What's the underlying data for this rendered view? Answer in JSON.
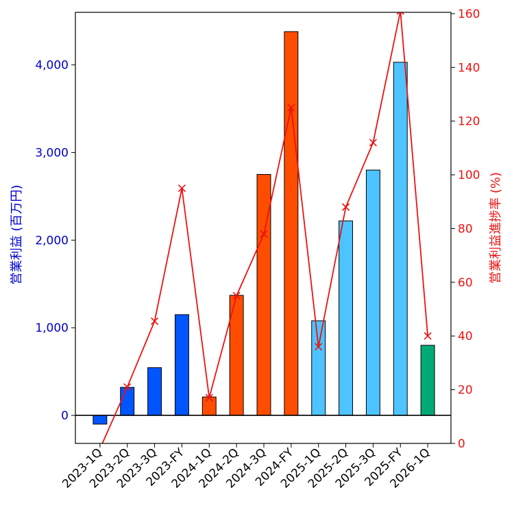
{
  "chart_data": {
    "type": "bar",
    "title": "",
    "xlabel": "",
    "ylabel": "営業利益 (百万円)",
    "y2label": "営業利益進捗率 (%)",
    "categories": [
      "2023-1Q",
      "2023-2Q",
      "2023-3Q",
      "2023-FY",
      "2024-1Q",
      "2024-2Q",
      "2024-3Q",
      "2024-FY",
      "2025-1Q",
      "2025-2Q",
      "2025-3Q",
      "2025-FY",
      "2026-1Q"
    ],
    "values": [
      -100,
      320,
      545,
      1150,
      210,
      1370,
      2750,
      4380,
      1080,
      2220,
      2800,
      4030,
      800
    ],
    "bar_colors": [
      "#0055ff",
      "#0055ff",
      "#0055ff",
      "#0055ff",
      "#ff4d00",
      "#ff4d00",
      "#ff4d00",
      "#ff4d00",
      "#4dc3ff",
      "#4dc3ff",
      "#4dc3ff",
      "#4dc3ff",
      "#00aa77"
    ],
    "line_series": {
      "name": "営業利益進捗率 (%)",
      "color": "#ee1111",
      "marker": "x",
      "values": [
        -2,
        21,
        45.5,
        95,
        17,
        55,
        78,
        125,
        36,
        88,
        112,
        161,
        40
      ]
    },
    "ylim": [
      -320,
      4600
    ],
    "y2lim": [
      0,
      160.5
    ],
    "yticks": [
      0,
      1000,
      2000,
      3000,
      4000
    ],
    "ytick_labels": [
      "0",
      "1,000",
      "2,000",
      "3,000",
      "4,000"
    ],
    "y2ticks": [
      0,
      20,
      40,
      60,
      80,
      100,
      120,
      140,
      160
    ],
    "y2tick_labels": [
      "0",
      "20",
      "40",
      "60",
      "80",
      "100",
      "120",
      "140",
      "160"
    ],
    "zero_line": true,
    "grid": false,
    "legend": "none",
    "left_axis_color": "#0000cc",
    "right_axis_color": "#ee1111"
  }
}
